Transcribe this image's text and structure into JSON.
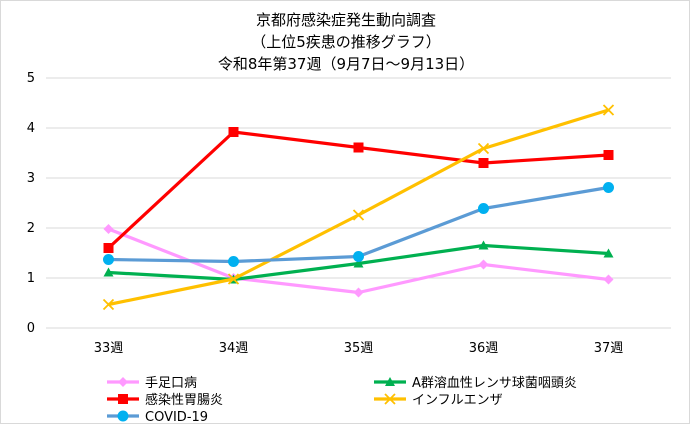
{
  "chart_data": {
    "type": "line",
    "title_lines": [
      "京都府感染症発生動向調査",
      "（上位5疾患の推移グラフ）",
      "令和8年第37週（9月7日～9月13日）"
    ],
    "categories": [
      "33週",
      "34週",
      "35週",
      "36週",
      "37週"
    ],
    "ylim": [
      0,
      5
    ],
    "yticks": [
      "0",
      "1",
      "2",
      "3",
      "4",
      "5"
    ],
    "grid": true,
    "legend_position": "bottom",
    "series": [
      {
        "name": "手足口病",
        "values": [
          1.98,
          1.0,
          0.71,
          1.27,
          0.97
        ],
        "color": "#ff99ff",
        "marker": "diamond"
      },
      {
        "name": "A群溶血性レンサ球菌咽頭炎",
        "values": [
          1.11,
          0.97,
          1.29,
          1.65,
          1.49
        ],
        "color": "#00b050",
        "marker": "triangle"
      },
      {
        "name": "感染性胃腸炎",
        "values": [
          1.6,
          3.92,
          3.61,
          3.3,
          3.46
        ],
        "color": "#ff0000",
        "marker": "square"
      },
      {
        "name": "インフルエンザ",
        "values": [
          0.47,
          0.98,
          2.26,
          3.59,
          4.36
        ],
        "color": "#ffc000",
        "marker": "x"
      },
      {
        "name": "COVID-19",
        "values": [
          1.37,
          1.33,
          1.43,
          2.39,
          2.81
        ],
        "color": "#00b0f0",
        "line_color": "#5b9bd5",
        "marker": "circle"
      }
    ]
  }
}
